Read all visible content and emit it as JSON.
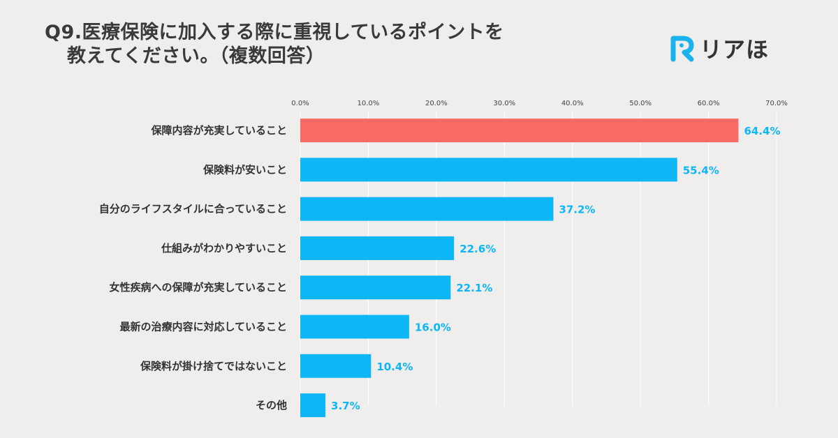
{
  "header": {
    "title_line1": "Q9.医療保険に加入する際に重視しているポイントを",
    "title_line2": "教えてください。（複数回答）"
  },
  "logo": {
    "mark_icon": "r-letter-logo-icon",
    "text": "リアほ",
    "mark_color": "#1ab3ee"
  },
  "colors": {
    "highlight": "#f96b66",
    "bar": "#0db6f5",
    "value_label": "#0db6f5"
  },
  "chart_data": {
    "type": "bar",
    "orientation": "horizontal",
    "categories": [
      "保障内容が充実していること",
      "保険料が安いこと",
      "自分のライフスタイルに合っていること",
      "仕組みがわかりやすいこと",
      "女性疾病への保障が充実していること",
      "最新の治療内容に対応していること",
      "保険料が掛け捨てではないこと",
      "その他"
    ],
    "values": [
      64.4,
      55.4,
      37.2,
      22.6,
      22.1,
      16.0,
      10.4,
      3.7
    ],
    "value_labels": [
      "64.4%",
      "55.4%",
      "37.2%",
      "22.6%",
      "22.1%",
      "16.0%",
      "10.4%",
      "3.7%"
    ],
    "x_ticks": [
      0,
      10,
      20,
      30,
      40,
      50,
      60,
      70
    ],
    "x_tick_labels": [
      "0.0%",
      "10.0%",
      "20.0%",
      "30.0%",
      "40.0%",
      "50.0%",
      "60.0%",
      "70.0%"
    ],
    "xlim": [
      0,
      70
    ],
    "highlight_index": 0,
    "axis_position": "top",
    "grid": true
  }
}
